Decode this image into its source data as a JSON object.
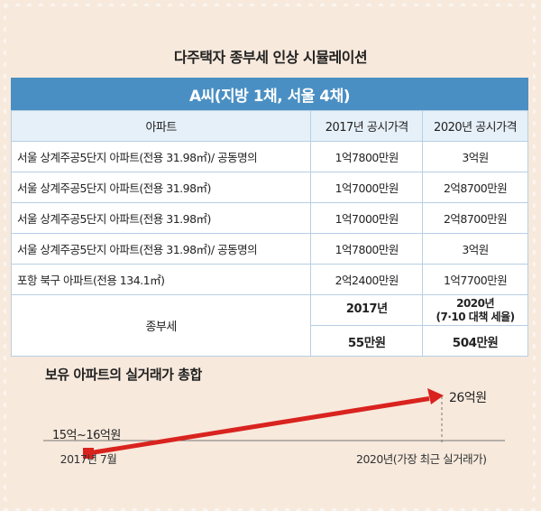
{
  "title": "다주택자 종부세 인상 시뮬레이션",
  "banner": "A씨(지방 1채, 서울 4채)",
  "table": {
    "headers": [
      "아파트",
      "2017년 공시가격",
      "2020년 공시가격"
    ],
    "rows": [
      {
        "apt": "서울 상계주공5단지 아파트(전용 31.98㎡)/ 공동명의",
        "p2017": "1억7800만원",
        "p2020": "3억원"
      },
      {
        "apt": "서울 상계주공5단지 아파트(전용 31.98㎡)",
        "p2017": "1억7000만원",
        "p2020": "2억8700만원"
      },
      {
        "apt": "서울 상계주공5단지 아파트(전용 31.98㎡)",
        "p2017": "1억7000만원",
        "p2020": "2억8700만원"
      },
      {
        "apt": "서울 상계주공5단지 아파트(전용 31.98㎡)/ 공동명의",
        "p2017": "1억7800만원",
        "p2020": "3억원"
      },
      {
        "apt": "포항 북구 아파트(전용 134.1㎡)",
        "p2017": "2억2400만원",
        "p2020": "1억7700만원"
      }
    ],
    "tax": {
      "label": "종부세",
      "year2017": "2017년",
      "year2020": "2020년",
      "year2020_note": "(7·10 대책 세율)",
      "value2017": "55만원",
      "value2020": "504만원"
    }
  },
  "chart_data": {
    "type": "line",
    "title": "보유 아파트의 실거래가 총합",
    "x": [
      "2017년 7월",
      "2020년(가장 최근 실거래가)"
    ],
    "series": [
      {
        "values_label": [
          "15억~16억원",
          "26억원"
        ],
        "values": [
          15.5,
          26
        ]
      }
    ],
    "unit": "억원",
    "colors": {
      "line": "#d9231f",
      "guide": "#777777"
    }
  }
}
